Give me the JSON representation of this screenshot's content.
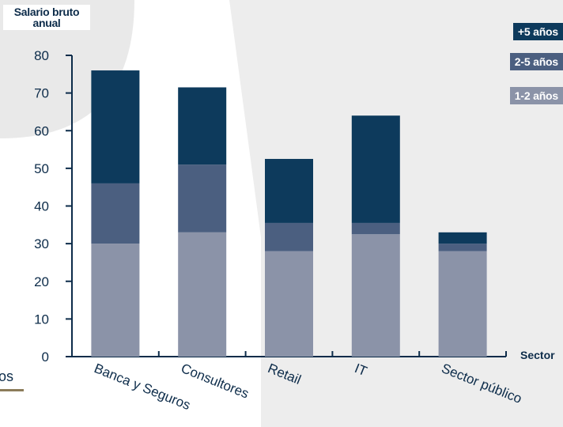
{
  "chart_data": {
    "type": "bar",
    "stacked": true,
    "ylabel": "Salario bruto anual",
    "xlabel": "Sector",
    "ylim": [
      0,
      80
    ],
    "yticks": [
      0,
      10,
      20,
      30,
      40,
      50,
      60,
      70,
      80
    ],
    "categories": [
      "Banca y Seguros",
      "Consultores",
      "Retail",
      "IT",
      "Sector público"
    ],
    "series": [
      {
        "name": "1-2 años",
        "color": "#8b93a8",
        "values": [
          30,
          33,
          28,
          32.5,
          28
        ]
      },
      {
        "name": "2-5 años",
        "color": "#4b5f80",
        "values": [
          16,
          18,
          7.5,
          3,
          2
        ]
      },
      {
        "name": "+5 años",
        "color": "#0d3a5c",
        "values": [
          30,
          20.5,
          17,
          28.5,
          3
        ]
      }
    ],
    "legend_position": "top-right",
    "grid": false
  },
  "partial_text": "os"
}
